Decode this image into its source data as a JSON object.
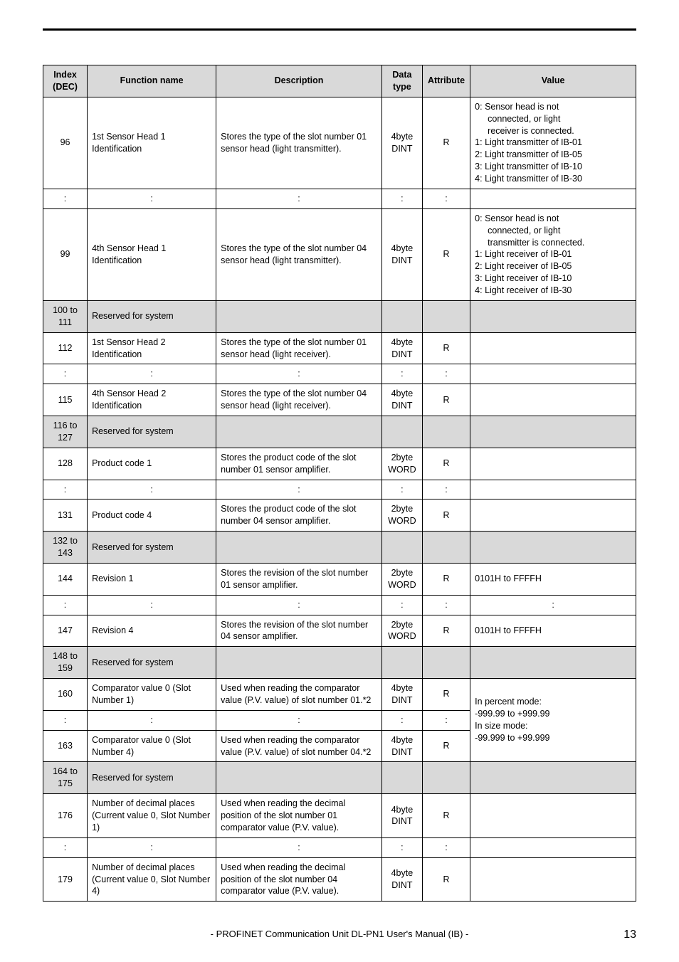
{
  "header": {
    "idx": "Index (DEC)",
    "fn": "Function name",
    "desc": "Description",
    "dtype": "Data type",
    "attr": "Attribute",
    "val": "Value"
  },
  "rows": {
    "r96": {
      "idx": "96",
      "fn": "1st Sensor Head 1 Identification",
      "desc": "Stores the type of the slot number 01 sensor head (light transmitter).",
      "dtype": "4byte DINT",
      "attr": "R",
      "val_l1": "0: Sensor head is not",
      "val_l2": "connected, or light",
      "val_l3": "receiver is connected.",
      "val_l4": "1: Light transmitter of IB-01",
      "val_l5": "2: Light transmitter of IB-05",
      "val_l6": "3: Light transmitter of IB-10",
      "val_l7": "4: Light transmitter of IB-30"
    },
    "dots": ":",
    "r99": {
      "idx": "99",
      "fn": "4th Sensor Head 1 Identification",
      "desc": "Stores the type of the slot number 04 sensor head (light transmitter).",
      "dtype": "4byte DINT",
      "attr": "R",
      "val_l1": "0: Sensor head is not",
      "val_l2": "connected, or light",
      "val_l3": "transmitter is connected.",
      "val_l4": "1: Light receiver of IB-01",
      "val_l5": "2: Light receiver of IB-05",
      "val_l6": "3: Light receiver of IB-10",
      "val_l7": "4: Light receiver of IB-30"
    },
    "r100": {
      "idx": "100 to 111",
      "fn": "Reserved for system"
    },
    "r112": {
      "idx": "112",
      "fn": "1st Sensor Head 2 Identification",
      "desc": "Stores the type of the slot number 01 sensor head (light receiver).",
      "dtype": "4byte DINT",
      "attr": "R"
    },
    "r115": {
      "idx": "115",
      "fn": "4th Sensor Head 2 Identification",
      "desc": "Stores the type of the slot number 04 sensor head (light receiver).",
      "dtype": "4byte DINT",
      "attr": "R"
    },
    "r116": {
      "idx": "116 to 127",
      "fn": "Reserved for system"
    },
    "r128": {
      "idx": "128",
      "fn": "Product code 1",
      "desc": "Stores the product code of the slot number 01 sensor amplifier.",
      "dtype": "2byte WORD",
      "attr": "R"
    },
    "r131": {
      "idx": "131",
      "fn": "Product code 4",
      "desc": "Stores the product code of the slot number 04 sensor amplifier.",
      "dtype": "2byte WORD",
      "attr": "R"
    },
    "r132": {
      "idx": "132 to 143",
      "fn": "Reserved for system"
    },
    "r144": {
      "idx": "144",
      "fn": "Revision 1",
      "desc": "Stores the revision of the slot number 01 sensor amplifier.",
      "dtype": "2byte WORD",
      "attr": "R",
      "val": "0101H to FFFFH"
    },
    "r147": {
      "idx": "147",
      "fn": "Revision 4",
      "desc": "Stores the revision of the slot number 04 sensor amplifier.",
      "dtype": "2byte WORD",
      "attr": "R",
      "val": "0101H to FFFFH"
    },
    "r148": {
      "idx": "148 to 159",
      "fn": "Reserved for system"
    },
    "r160": {
      "idx": "160",
      "fn": "Comparator value 0 (Slot Number 1)",
      "desc": "Used when reading the comparator value (P.V. value) of slot number 01.*2",
      "dtype": "4byte DINT",
      "attr": "R"
    },
    "r163": {
      "idx": "163",
      "fn": "Comparator value 0 (Slot Number 4)",
      "desc": "Used when reading the comparator value (P.V. value) of slot number 04.*2",
      "dtype": "4byte DINT",
      "attr": "R"
    },
    "comp_value": {
      "l1": "In percent mode:",
      "l2": "-999.99 to +999.99",
      "l3": "In size mode:",
      "l4": "-99.999 to +99.999"
    },
    "r164": {
      "idx": "164 to 175",
      "fn": "Reserved for system"
    },
    "r176": {
      "idx": "176",
      "fn": "Number of decimal places (Current value 0, Slot Number 1)",
      "desc": "Used when reading the decimal position of the slot number 01 comparator value (P.V. value).",
      "dtype": "4byte DINT",
      "attr": "R"
    },
    "r179": {
      "idx": "179",
      "fn": "Number of decimal places (Current value 0, Slot Number 4)",
      "desc": "Used when reading the decimal position of the slot number 04 comparator value (P.V. value).",
      "dtype": "4byte DINT",
      "attr": "R"
    }
  },
  "footer": {
    "text": "- PROFINET Communication Unit DL-PN1 User's Manual (IB) -",
    "page": "13"
  }
}
